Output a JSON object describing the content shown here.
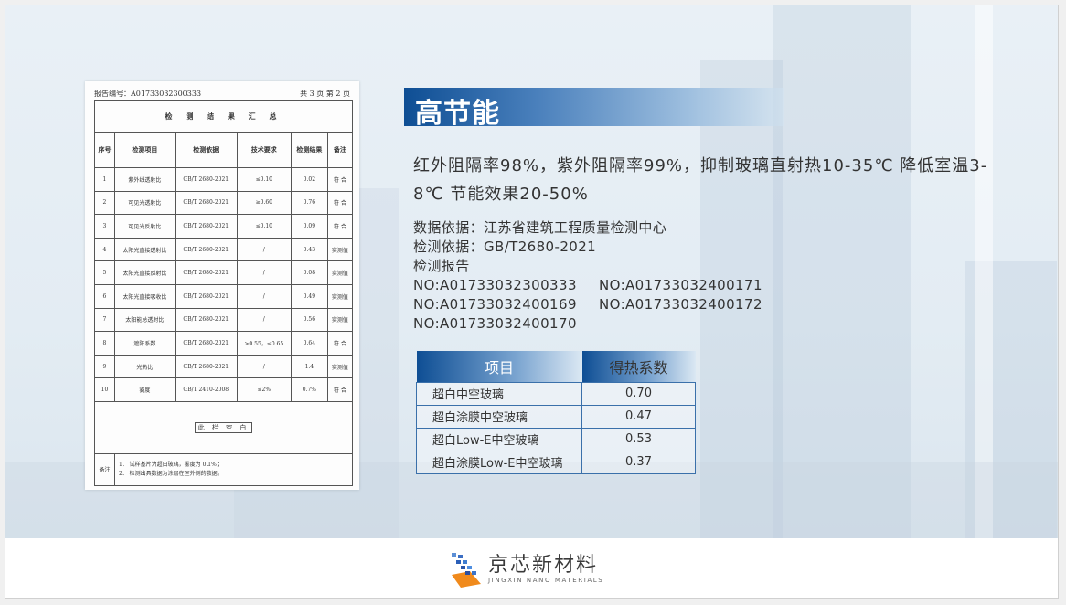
{
  "document": {
    "report_no": "报告编号：A01733032300333",
    "page_info": "共 3 页 第 2 页",
    "table_title": "检 测 结 果 汇 总",
    "headers": [
      "序号",
      "检测项目",
      "检测依据",
      "技术要求",
      "检测结果",
      "备注"
    ],
    "rows": [
      [
        "1",
        "紫外线透射比",
        "GB/T 2680-2021",
        "≤0.10",
        "0.02",
        "符 合"
      ],
      [
        "2",
        "可见光透射比",
        "GB/T 2680-2021",
        "≥0.60",
        "0.76",
        "符 合"
      ],
      [
        "3",
        "可见光反射比",
        "GB/T 2680-2021",
        "≤0.10",
        "0.09",
        "符 合"
      ],
      [
        "4",
        "太阳光直接透射比",
        "GB/T 2680-2021",
        "/",
        "0.43",
        "实测值"
      ],
      [
        "5",
        "太阳光直接反射比",
        "GB/T 2680-2021",
        "/",
        "0.08",
        "实测值"
      ],
      [
        "6",
        "太阳光直接吸收比",
        "GB/T 2680-2021",
        "/",
        "0.49",
        "实测值"
      ],
      [
        "7",
        "太阳能总透射比",
        "GB/T 2680-2021",
        "/",
        "0.56",
        "实测值"
      ],
      [
        "8",
        "遮阳系数",
        "GB/T 2680-2021",
        ">0.55，≤0.65",
        "0.64",
        "符 合"
      ],
      [
        "9",
        "光热比",
        "GB/T 2680-2021",
        "/",
        "1.4",
        "实测值"
      ],
      [
        "10",
        "雾度",
        "GB/T 2410-2008",
        "≤2%",
        "0.7%",
        "符 合"
      ]
    ],
    "blank_stamp": "此 栏 空 白",
    "notes_label": "备注",
    "notes": [
      "1、 试样基片为超白玻璃，雾度为 0.1%；",
      "2、 检测出具数据为涂层在室外侧的数据。"
    ]
  },
  "title": "高节能",
  "description": "红外阻隔率98%，紫外阻隔率99%，抑制玻璃直射热10-35℃ 降低室温3-8℃ 节能效果20-50%",
  "info": {
    "data_source": "数据依据：江苏省建筑工程质量检测中心",
    "standard": "检测依据：GB/T2680-2021",
    "report_label": "检测报告",
    "report_numbers": [
      "NO:A01733032300333",
      "NO:A01733032400171",
      "NO:A01733032400169",
      "NO:A01733032400172",
      "NO:A01733032400170"
    ]
  },
  "gain_table": {
    "headers": [
      "项目",
      "得热系数"
    ],
    "rows": [
      [
        "超白中空玻璃",
        "0.70"
      ],
      [
        "超白涂膜中空玻璃",
        "0.47"
      ],
      [
        "超白Low-E中空玻璃",
        "0.53"
      ],
      [
        "超白涂膜Low-E中空玻璃",
        "0.37"
      ]
    ]
  },
  "logo": {
    "name_cn": "京芯新材料",
    "name_en": "JINGXIN NANO MATERIALS"
  },
  "colors": {
    "accent": "#0e4e94",
    "table_border": "#3a70aa"
  }
}
